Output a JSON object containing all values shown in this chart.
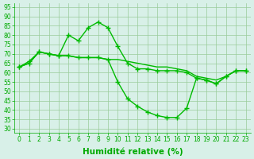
{
  "line1_x": [
    0,
    1,
    2,
    3,
    4,
    5,
    6,
    7,
    8,
    9,
    10,
    11,
    12,
    13,
    14,
    15,
    16,
    17,
    18,
    19,
    20,
    21,
    22,
    23
  ],
  "line1_y": [
    63,
    66,
    71,
    70,
    69,
    80,
    77,
    84,
    87,
    84,
    74,
    65,
    62,
    62,
    61,
    61,
    61,
    60,
    57,
    56,
    54,
    58,
    61,
    61
  ],
  "line2_x": [
    0,
    1,
    2,
    3,
    4,
    5,
    6,
    7,
    8,
    9,
    10,
    11,
    12,
    13,
    14,
    15,
    16,
    17,
    18,
    19,
    20,
    21,
    22,
    23
  ],
  "line2_y": [
    63,
    65,
    71,
    70,
    69,
    69,
    68,
    68,
    68,
    67,
    67,
    66,
    65,
    64,
    63,
    63,
    62,
    61,
    58,
    57,
    56,
    58,
    61,
    61
  ],
  "line3_x": [
    0,
    1,
    2,
    3,
    4,
    5,
    6,
    7,
    8,
    9,
    10,
    11,
    12,
    13,
    14,
    15,
    16,
    17,
    18,
    19,
    20,
    21,
    22,
    23
  ],
  "line3_y": [
    63,
    65,
    71,
    70,
    69,
    69,
    68,
    68,
    68,
    67,
    55,
    46,
    42,
    39,
    37,
    36,
    36,
    41,
    57,
    56,
    54,
    58,
    61,
    61
  ],
  "line_color": "#00bb00",
  "bg_color": "#d8f0e8",
  "grid_color": "#99cc99",
  "axis_color": "#00aa00",
  "xlabel": "Humidité relative (%)",
  "xlim": [
    -0.5,
    23.5
  ],
  "ylim": [
    28,
    97
  ],
  "yticks": [
    30,
    35,
    40,
    45,
    50,
    55,
    60,
    65,
    70,
    75,
    80,
    85,
    90,
    95
  ],
  "xticks": [
    0,
    1,
    2,
    3,
    4,
    5,
    6,
    7,
    8,
    9,
    10,
    11,
    12,
    13,
    14,
    15,
    16,
    17,
    18,
    19,
    20,
    21,
    22,
    23
  ],
  "tick_fontsize": 5.5,
  "xlabel_fontsize": 7.5,
  "linewidth": 1.0,
  "markersize": 4
}
